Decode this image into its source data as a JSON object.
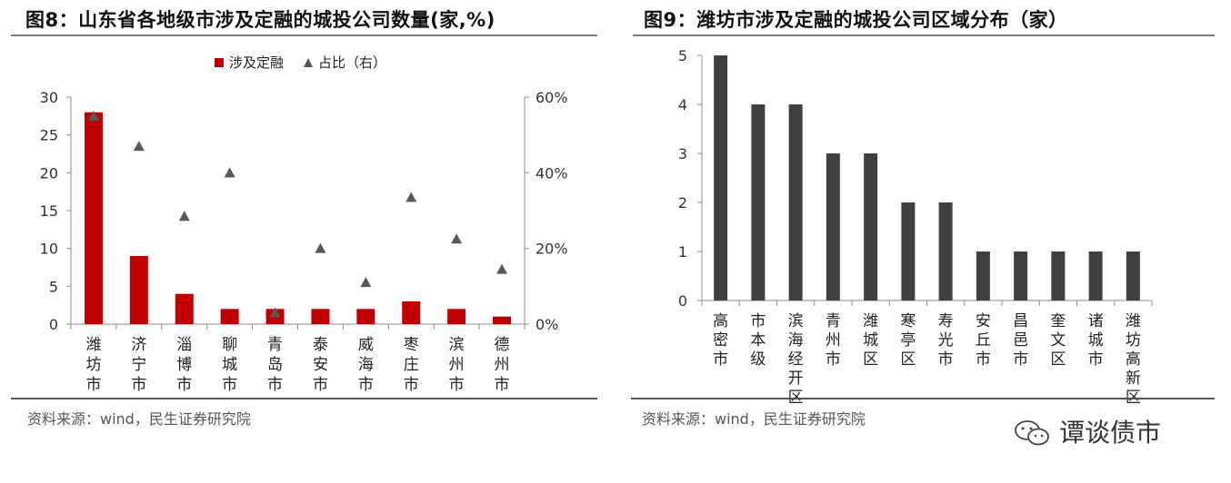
{
  "left": {
    "title": "图8：山东省各地级市涉及定融的城投公司数量(家,%)",
    "source": "资料来源：wind，民生证券研究院",
    "legend": {
      "bar": "涉及定融",
      "marker": "占比（右）"
    },
    "chart_data": {
      "type": "bar",
      "categories": [
        "潍坊市",
        "济宁市",
        "淄博市",
        "聊城市",
        "青岛市",
        "泰安市",
        "威海市",
        "枣庄市",
        "滨州市",
        "德州市"
      ],
      "series": [
        {
          "name": "涉及定融",
          "type": "bar",
          "axis": "left",
          "values": [
            28,
            9,
            4,
            2,
            2,
            2,
            2,
            3,
            2,
            1
          ]
        },
        {
          "name": "占比（右）",
          "type": "scatter",
          "axis": "right",
          "values": [
            55,
            47,
            28.5,
            40,
            3,
            20,
            11,
            33.5,
            22.5,
            14.5
          ]
        }
      ],
      "ylim": [
        0,
        30
      ],
      "yticks": [
        "0",
        "5",
        "10",
        "15",
        "20",
        "25",
        "30"
      ],
      "y2lim": [
        0,
        60
      ],
      "y2ticks": [
        "0%",
        "20%",
        "40%",
        "60%"
      ],
      "legend_position": "top-right",
      "colors": {
        "bar": "#c00000",
        "marker": "#595959"
      }
    }
  },
  "right": {
    "title": "图9：潍坊市涉及定融的城投公司区域分布（家）",
    "source": "资料来源：wind，民生证券研究院",
    "chart_data": {
      "type": "bar",
      "categories": [
        "高密市",
        "市本级",
        "滨海经开区",
        "青州市",
        "潍城区",
        "寒亭区",
        "寿光市",
        "安丘市",
        "昌邑市",
        "奎文区",
        "诸城市",
        "潍坊高新区"
      ],
      "values": [
        5,
        4,
        4,
        3,
        3,
        2,
        2,
        1,
        1,
        1,
        1,
        1
      ],
      "ylim": [
        0,
        5
      ],
      "yticks": [
        "0",
        "1",
        "2",
        "3",
        "4",
        "5"
      ],
      "colors": {
        "bar": "#404040"
      }
    }
  },
  "watermark": "谭谈债市"
}
